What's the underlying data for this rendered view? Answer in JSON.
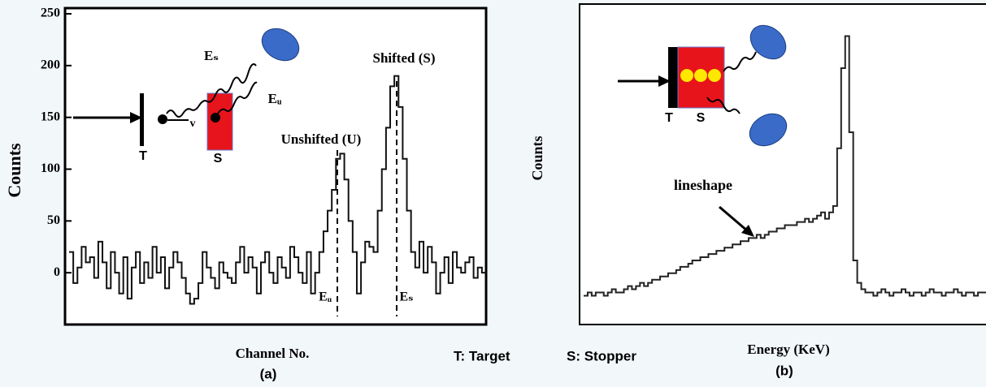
{
  "chart_data": [
    {
      "type": "line",
      "y_label": "Counts",
      "x_label": "Channel No.",
      "panel": "(a)",
      "ylim": [
        -50,
        250
      ],
      "yticks": [
        0,
        50,
        100,
        150,
        200,
        250
      ],
      "color": "#111111",
      "values": [
        20,
        -10,
        5,
        25,
        10,
        15,
        -5,
        30,
        10,
        -15,
        20,
        0,
        -20,
        15,
        -25,
        5,
        20,
        -10,
        10,
        -5,
        25,
        0,
        15,
        -15,
        5,
        20,
        10,
        -5,
        -20,
        -30,
        -25,
        -10,
        20,
        5,
        -5,
        -15,
        10,
        0,
        -5,
        -10,
        10,
        25,
        0,
        15,
        5,
        -20,
        10,
        20,
        0,
        -10,
        15,
        5,
        -5,
        25,
        15,
        0,
        -10,
        20,
        -20,
        0,
        20,
        40,
        60,
        80,
        110,
        115,
        90,
        50,
        20,
        -20,
        10,
        30,
        25,
        20,
        60,
        100,
        140,
        180,
        190,
        160,
        110,
        60,
        20,
        5,
        30,
        0,
        25,
        10,
        -20,
        0,
        15,
        -10,
        20,
        5,
        0,
        10,
        15,
        -5,
        5,
        0
      ],
      "annotations": [
        "Shifted (S)",
        "Unshifted (U)",
        "Eₛ",
        "Eᵤ",
        "v",
        "T",
        "S",
        "Eᵤ",
        "Eₛ"
      ]
    },
    {
      "type": "line",
      "y_label": "Counts",
      "x_label": "Energy (KeV)",
      "panel": "(b)",
      "ylim": [
        0,
        100
      ],
      "color": "#222222",
      "values": [
        9,
        10,
        9,
        10,
        10,
        9,
        10,
        11,
        10,
        10,
        11,
        12,
        11,
        12,
        13,
        12,
        13,
        14,
        14,
        15,
        15,
        16,
        16,
        17,
        18,
        18,
        19,
        20,
        20,
        21,
        21,
        22,
        22,
        23,
        23,
        24,
        24,
        25,
        25,
        26,
        26,
        27,
        27,
        28,
        27,
        28,
        29,
        29,
        30,
        30,
        31,
        31,
        31,
        32,
        32,
        33,
        32,
        33,
        34,
        35,
        33,
        35,
        37,
        55,
        80,
        90,
        60,
        20,
        13,
        11,
        10,
        10,
        9,
        10,
        11,
        10,
        9,
        10,
        10,
        11,
        10,
        9,
        10,
        10,
        9,
        10,
        11,
        10,
        10,
        9,
        10,
        10,
        11,
        10,
        9,
        10,
        10,
        9,
        10,
        10
      ],
      "annotations": [
        "lineshape",
        "T",
        "S"
      ]
    }
  ],
  "legend": [
    "T: Target",
    "S: Stopper"
  ]
}
